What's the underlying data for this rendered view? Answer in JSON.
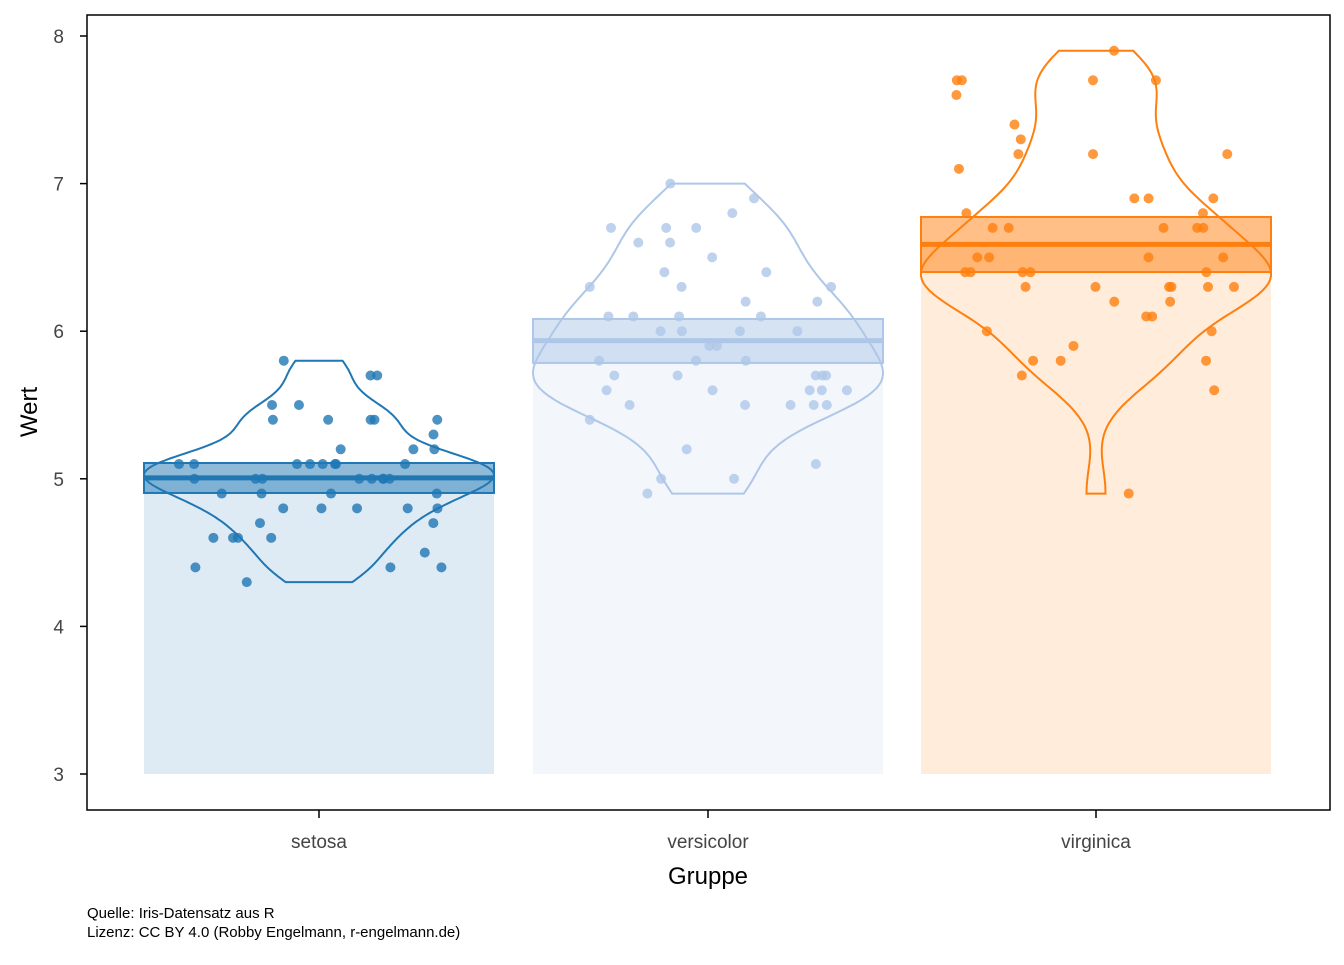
{
  "chart_data": {
    "type": "pirateplot",
    "title": "",
    "xlabel": "Gruppe",
    "ylabel": "Wert",
    "ylim": [
      3,
      8
    ],
    "yticks": [
      "3",
      "4",
      "5",
      "6",
      "7",
      "8"
    ],
    "grid": false,
    "bar_baseline": 3,
    "groups": [
      {
        "name": "setosa",
        "color": "#1f77b4",
        "mean": 5.006,
        "band": [
          4.904,
          5.107
        ],
        "values": [
          5.1,
          4.9,
          4.7,
          4.6,
          5.0,
          5.4,
          4.6,
          5.0,
          4.4,
          4.9,
          5.4,
          4.8,
          4.8,
          4.3,
          5.8,
          5.7,
          5.4,
          5.1,
          5.7,
          5.1,
          5.4,
          5.1,
          4.6,
          5.1,
          4.8,
          5.0,
          5.0,
          5.2,
          5.2,
          4.7,
          4.8,
          5.4,
          5.2,
          5.5,
          4.9,
          5.0,
          5.5,
          4.9,
          4.4,
          5.1,
          5.0,
          4.5,
          4.4,
          5.0,
          5.1,
          4.8,
          5.1,
          4.6,
          5.3,
          5.0
        ]
      },
      {
        "name": "versicolor",
        "color": "#aec7e8",
        "mean": 5.936,
        "band": [
          5.785,
          6.083
        ],
        "values": [
          7.0,
          6.4,
          6.9,
          5.5,
          6.5,
          5.7,
          6.3,
          4.9,
          6.6,
          5.2,
          5.0,
          5.9,
          6.0,
          6.1,
          5.6,
          6.7,
          5.6,
          5.8,
          6.2,
          5.6,
          5.9,
          6.1,
          6.3,
          6.1,
          6.4,
          6.6,
          6.8,
          6.7,
          6.0,
          5.7,
          5.5,
          5.5,
          5.8,
          6.0,
          5.4,
          6.0,
          6.7,
          6.3,
          5.6,
          5.5,
          5.5,
          6.1,
          5.8,
          5.0,
          5.6,
          5.7,
          5.7,
          6.2,
          5.1,
          5.7
        ]
      },
      {
        "name": "virginica",
        "color": "#ff7f0e",
        "mean": 6.588,
        "band": [
          6.401,
          6.774
        ],
        "values": [
          6.3,
          5.8,
          7.1,
          6.3,
          6.5,
          7.6,
          4.9,
          7.3,
          6.7,
          7.2,
          6.5,
          6.4,
          6.8,
          5.7,
          5.8,
          6.4,
          6.5,
          7.7,
          7.7,
          6.0,
          6.9,
          5.6,
          7.7,
          6.3,
          6.7,
          7.2,
          6.2,
          6.1,
          6.4,
          7.2,
          7.4,
          7.9,
          6.4,
          6.3,
          6.1,
          7.7,
          6.3,
          6.4,
          6.0,
          6.9,
          6.7,
          6.9,
          5.8,
          6.8,
          6.7,
          6.7,
          6.3,
          6.5,
          6.2,
          5.9
        ]
      }
    ]
  },
  "caption": {
    "line1": "Quelle: Iris-Datensatz aus R",
    "line2": "Lizenz: CC BY 4.0 (Robby Engelmann, r-engelmann.de)"
  }
}
